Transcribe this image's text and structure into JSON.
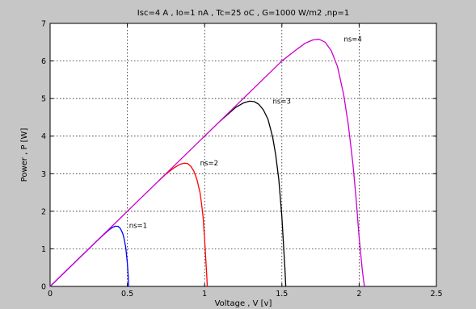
{
  "chart_data": {
    "type": "line",
    "title": "Isc=4 A , Io=1 nA , Tc=25 oC , G=1000 W/m2 ,np=1",
    "xlabel": "Voltage , V [v]",
    "ylabel": "Power , P [W]",
    "xlim": [
      0,
      2.5
    ],
    "ylim": [
      0,
      7
    ],
    "xticks": [
      0,
      0.5,
      1,
      1.5,
      2,
      2.5
    ],
    "yticks": [
      0,
      1,
      2,
      3,
      4,
      5,
      6,
      7
    ],
    "grid": true,
    "series": [
      {
        "name": "ns=1",
        "color": "#0000ff",
        "x": [
          0,
          0.05,
          0.1,
          0.15,
          0.2,
          0.25,
          0.3,
          0.35,
          0.38,
          0.4,
          0.42,
          0.44,
          0.455,
          0.47,
          0.48,
          0.49,
          0.5,
          0.505,
          0.508
        ],
        "y": [
          0,
          0.2,
          0.4,
          0.6,
          0.8,
          1.0,
          1.2,
          1.39,
          1.5,
          1.56,
          1.6,
          1.6,
          1.54,
          1.41,
          1.25,
          1.02,
          0.62,
          0.3,
          0
        ]
      },
      {
        "name": "ns=2",
        "color": "#ff0000",
        "x": [
          0.7,
          0.75,
          0.8,
          0.84,
          0.87,
          0.89,
          0.91,
          0.93,
          0.95,
          0.97,
          0.98,
          0.99,
          1.0,
          1.01,
          1.015,
          1.017
        ],
        "y": [
          2.8,
          2.99,
          3.15,
          3.25,
          3.28,
          3.27,
          3.2,
          3.07,
          2.85,
          2.5,
          2.2,
          1.85,
          1.25,
          0.55,
          0.2,
          0
        ]
      },
      {
        "name": "ns=3",
        "color": "#000000",
        "x": [
          1.1,
          1.15,
          1.2,
          1.25,
          1.29,
          1.32,
          1.35,
          1.38,
          1.41,
          1.44,
          1.46,
          1.48,
          1.5,
          1.51,
          1.52,
          1.525
        ],
        "y": [
          4.4,
          4.58,
          4.76,
          4.88,
          4.93,
          4.92,
          4.85,
          4.7,
          4.45,
          3.98,
          3.5,
          2.85,
          1.85,
          1.15,
          0.45,
          0
        ]
      },
      {
        "name": "ns=4",
        "color": "#cc00cc",
        "x": [
          0,
          0.5,
          1.0,
          1.5,
          1.6,
          1.65,
          1.7,
          1.74,
          1.78,
          1.82,
          1.86,
          1.9,
          1.93,
          1.96,
          1.98,
          2.0,
          2.02,
          2.03,
          2.035
        ],
        "y": [
          0,
          2.0,
          4.0,
          6.0,
          6.32,
          6.47,
          6.56,
          6.58,
          6.5,
          6.27,
          5.85,
          5.1,
          4.3,
          3.25,
          2.35,
          1.3,
          0.45,
          0.12,
          0
        ]
      }
    ],
    "annotations": [
      {
        "text": "ns=1",
        "x": 0.49,
        "y": 1.62
      },
      {
        "text": "ns=2",
        "x": 0.95,
        "y": 3.28
      },
      {
        "text": "ns=3",
        "x": 1.42,
        "y": 4.93
      },
      {
        "text": "ns=4",
        "x": 1.88,
        "y": 6.58
      }
    ]
  }
}
